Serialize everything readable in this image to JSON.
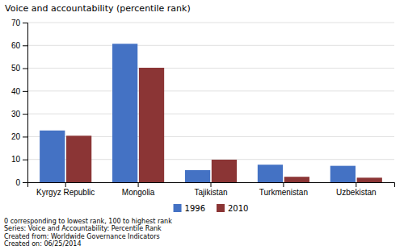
{
  "chart_data": {
    "type": "bar",
    "ylabel": "Voice and accountability (percentile rank)",
    "categories": [
      "Kyrgyz Republic",
      "Mongolia",
      "Tajikistan",
      "Turkmenistan",
      "Uzbekistan"
    ],
    "series": [
      {
        "name": "1996",
        "color": "#4472C4",
        "values": [
          22.7,
          60.7,
          5.3,
          7.7,
          7.2
        ]
      },
      {
        "name": "2010",
        "color": "#8B3535",
        "values": [
          20.4,
          50.2,
          9.9,
          2.4,
          2.0
        ]
      }
    ],
    "ylim": [
      0,
      70
    ],
    "yticks": [
      0,
      10,
      20,
      30,
      40,
      50,
      60,
      70
    ],
    "grid": true,
    "legend": "bottom",
    "annotations": [
      "0 corresponding to lowest rank, 100 to highest rank",
      "Series: Voice and Accountability: Percentile Rank",
      "Created from: Worldwide Governance Indicators",
      "Created on: 06/25/2014"
    ]
  }
}
